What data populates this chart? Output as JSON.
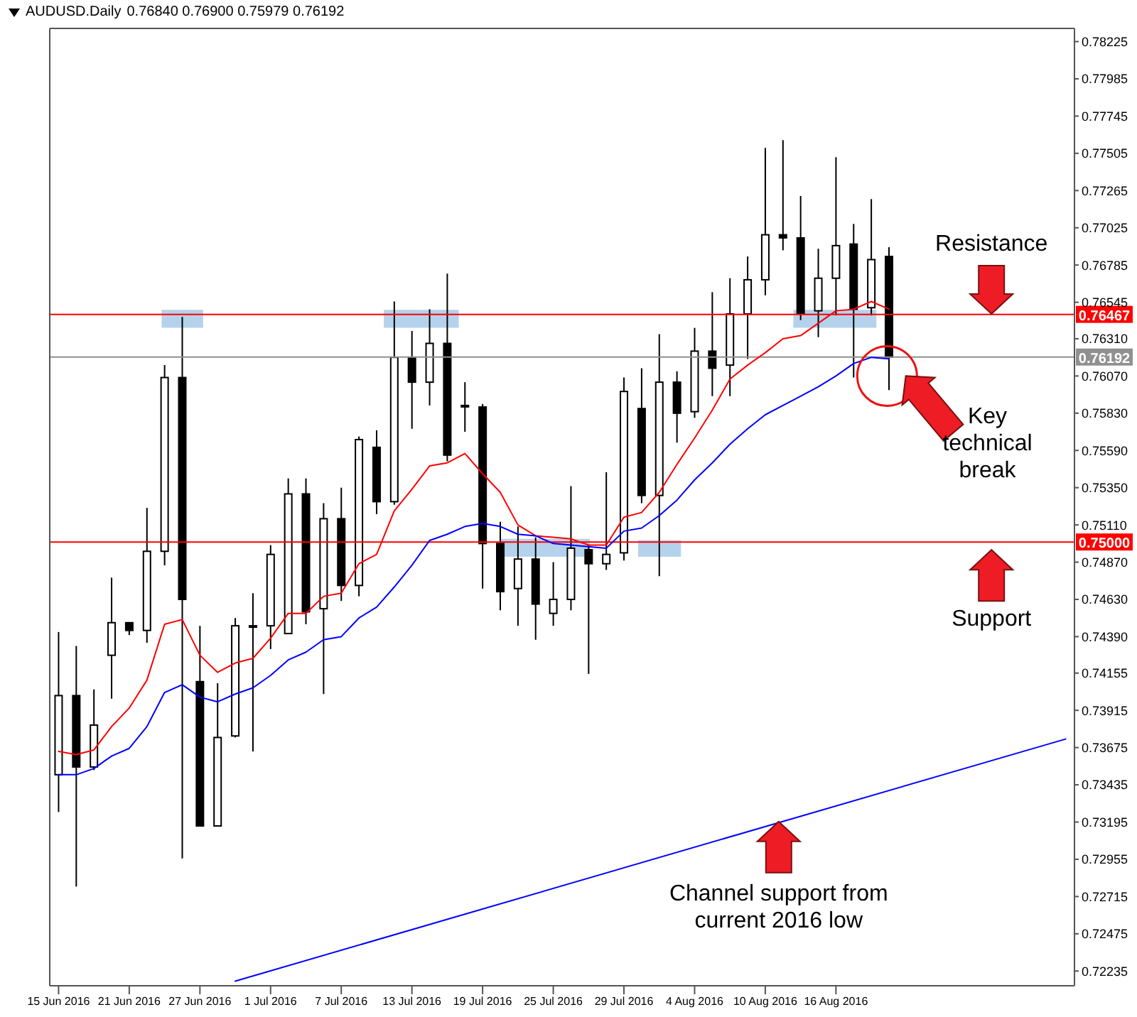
{
  "chart_data": {
    "type": "candlestick",
    "title": "AUDUSD.Daily",
    "subtitle": "0.76840 0.76900 0.75979 0.76192",
    "categories": [
      "15 Jun 2016",
      null,
      null,
      null,
      "21 Jun 2016",
      null,
      null,
      null,
      "27 Jun 2016",
      null,
      null,
      null,
      "1 Jul 2016",
      null,
      null,
      null,
      "7 Jul 2016",
      null,
      null,
      null,
      "13 Jul 2016",
      null,
      null,
      null,
      "19 Jul 2016",
      null,
      null,
      null,
      "25 Jul 2016",
      null,
      null,
      null,
      "29 Jul 2016",
      null,
      null,
      null,
      "4 Aug 2016",
      null,
      null,
      null,
      "10 Aug 2016",
      null,
      null,
      null,
      "16 Aug 2016",
      null,
      null,
      null,
      null,
      null,
      null,
      null,
      null,
      null,
      null,
      null,
      null,
      null
    ],
    "ohlc": [
      [
        0.735,
        0.7442,
        0.7326,
        0.7401
      ],
      [
        0.7401,
        0.7433,
        0.7278,
        0.7355
      ],
      [
        0.7355,
        0.7405,
        0.7353,
        0.7382
      ],
      [
        0.7427,
        0.7477,
        0.7399,
        0.7448
      ],
      [
        0.7448,
        0.7448,
        0.744,
        0.7443
      ],
      [
        0.7443,
        0.7522,
        0.7435,
        0.7494
      ],
      [
        0.7494,
        0.7614,
        0.7485,
        0.7606
      ],
      [
        0.7606,
        0.7645,
        0.7296,
        0.7463
      ],
      [
        0.741,
        0.7446,
        0.7317,
        0.7317
      ],
      [
        0.7317,
        0.7409,
        0.7317,
        0.7374
      ],
      [
        0.7375,
        0.7451,
        0.7374,
        0.7446
      ],
      [
        0.7446,
        0.7467,
        0.7365,
        0.7446
      ],
      [
        0.7446,
        0.7498,
        0.7431,
        0.7492
      ],
      [
        0.7441,
        0.7541,
        0.7441,
        0.7531
      ],
      [
        0.7531,
        0.7541,
        0.7447,
        0.7455
      ],
      [
        0.7457,
        0.7525,
        0.7402,
        0.7515
      ],
      [
        0.7515,
        0.7535,
        0.7462,
        0.7472
      ],
      [
        0.7472,
        0.7568,
        0.7465,
        0.7566
      ],
      [
        0.7561,
        0.7572,
        0.7518,
        0.7526
      ],
      [
        0.7526,
        0.7655,
        0.7524,
        0.7619
      ],
      [
        0.7619,
        0.7636,
        0.7573,
        0.7603
      ],
      [
        0.7603,
        0.765,
        0.7588,
        0.7628
      ],
      [
        0.7628,
        0.7673,
        0.7552,
        0.7556
      ],
      [
        0.7588,
        0.7603,
        0.7571,
        0.7588
      ],
      [
        0.7587,
        0.7589,
        0.747,
        0.7499
      ],
      [
        0.7499,
        0.7513,
        0.7456,
        0.7468
      ],
      [
        0.747,
        0.751,
        0.7446,
        0.7489
      ],
      [
        0.7489,
        0.7503,
        0.7437,
        0.746
      ],
      [
        0.7454,
        0.7487,
        0.7446,
        0.7463
      ],
      [
        0.7463,
        0.7536,
        0.7456,
        0.7496
      ],
      [
        0.7495,
        0.7498,
        0.7415,
        0.7486
      ],
      [
        0.7486,
        0.7545,
        0.7482,
        0.7492
      ],
      [
        0.7493,
        0.7606,
        0.7488,
        0.7597
      ],
      [
        0.7586,
        0.7612,
        0.7525,
        0.753
      ],
      [
        0.753,
        0.7634,
        0.7478,
        0.7603
      ],
      [
        0.7603,
        0.761,
        0.7564,
        0.7583
      ],
      [
        0.7584,
        0.7638,
        0.758,
        0.7623
      ],
      [
        0.7623,
        0.7661,
        0.7594,
        0.7612
      ],
      [
        0.7614,
        0.767,
        0.7594,
        0.7647
      ],
      [
        0.7647,
        0.7684,
        0.7618,
        0.7669
      ],
      [
        0.7669,
        0.7754,
        0.7659,
        0.7698
      ],
      [
        0.7698,
        0.7759,
        0.7688,
        0.7696
      ],
      [
        0.7696,
        0.7723,
        0.7643,
        0.7647
      ],
      [
        0.7649,
        0.7689,
        0.7632,
        0.767
      ],
      [
        0.767,
        0.7748,
        0.7646,
        0.7691
      ],
      [
        0.7692,
        0.7705,
        0.7606,
        0.765
      ],
      [
        0.7651,
        0.7721,
        0.7646,
        0.7682
      ],
      [
        0.7684,
        0.769,
        0.75979,
        0.76192
      ],
      null,
      null,
      null,
      null,
      null,
      null,
      null,
      null,
      null,
      null
    ],
    "series": [
      {
        "type": "line",
        "color": "#ff0000",
        "values": [
          0.7365,
          0.7363,
          0.7366,
          0.7381,
          0.7393,
          0.7411,
          0.7447,
          0.745,
          0.7427,
          0.7416,
          0.7422,
          0.7425,
          0.7438,
          0.7454,
          0.7454,
          0.7465,
          0.7467,
          0.7486,
          0.7492,
          0.752,
          0.7534,
          0.7549,
          0.7551,
          0.7557,
          0.7544,
          0.7532,
          0.7511,
          0.7504,
          0.7503,
          0.7502,
          0.7498,
          0.7498,
          0.7516,
          0.7519,
          0.7532,
          0.755,
          0.7567,
          0.7585,
          0.7605,
          0.7614,
          0.7622,
          0.7631,
          0.7633,
          0.7641,
          0.7649,
          0.765,
          0.7655,
          0.765,
          null,
          null,
          null,
          null,
          null,
          null,
          null,
          null,
          null,
          null
        ]
      },
      {
        "type": "line",
        "color": "#0000ff",
        "values": [
          0.735,
          0.735,
          0.7354,
          0.7362,
          0.7367,
          0.7381,
          0.7403,
          0.7408,
          0.74,
          0.7397,
          0.7402,
          0.7406,
          0.7414,
          0.7424,
          0.7429,
          0.7437,
          0.7439,
          0.7451,
          0.7458,
          0.7471,
          0.7485,
          0.7501,
          0.7505,
          0.751,
          0.7512,
          0.751,
          0.7505,
          0.7504,
          0.7499,
          0.7498,
          0.7497,
          0.7496,
          0.7507,
          0.7509,
          0.7517,
          0.7527,
          0.754,
          0.7551,
          0.7563,
          0.7573,
          0.7582,
          0.7588,
          0.7594,
          0.76,
          0.7607,
          0.7615,
          0.7619,
          0.7618,
          null,
          null,
          null,
          null,
          null,
          null,
          null,
          null,
          null,
          null
        ]
      },
      {
        "type": "line",
        "color": "#0000ff",
        "values": [
          null,
          null,
          null,
          null,
          null,
          null,
          null,
          null,
          null,
          null,
          0.7217,
          null,
          null,
          null,
          null,
          null,
          null,
          null,
          null,
          null,
          null,
          null,
          null,
          null,
          null,
          null,
          null,
          null,
          null,
          null,
          null,
          null,
          null,
          null,
          null,
          null,
          null,
          null,
          null,
          null,
          null,
          null,
          null,
          null,
          null,
          null,
          null,
          null,
          null,
          null,
          null,
          null,
          null,
          null,
          null,
          null,
          null,
          0.7373
        ]
      }
    ],
    "ylim": [
      0.7214,
      0.7831
    ],
    "yticks": [
      0.72235,
      0.72475,
      0.72715,
      0.72955,
      0.73195,
      0.73435,
      0.73675,
      0.73915,
      0.74155,
      {
        "value": 0.7439,
        "label": "0.74390"
      },
      {
        "value": 0.7463,
        "label": "0.74630"
      },
      {
        "value": 0.7487,
        "label": "0.74870"
      },
      {
        "value": 0.7511,
        "label": "0.75110"
      },
      {
        "value": 0.7535,
        "label": "0.75350"
      },
      {
        "value": 0.7559,
        "label": "0.75590"
      },
      {
        "value": 0.7583,
        "label": "0.75830"
      },
      {
        "value": 0.7607,
        "label": "0.76070"
      },
      {
        "value": 0.7631,
        "label": "0.76310"
      },
      0.76545,
      0.76785,
      0.77025,
      0.77265,
      0.77505,
      0.77745,
      0.77985,
      0.78225
    ],
    "ref_lines": [
      {
        "axis": "y",
        "value": 0.76467,
        "label": "0.76467",
        "color": "#ff0000"
      },
      {
        "axis": "y",
        "value": 0.75,
        "label": "0.75000",
        "color": "#ff0000"
      },
      {
        "axis": "y",
        "value": 0.76192,
        "label": "0.76192",
        "color": "#909090"
      }
    ],
    "annotations": [
      "Resistance",
      "Key technical break",
      "Support",
      "Channel support from current 2016 low"
    ],
    "marker": "none",
    "grid": false
  }
}
